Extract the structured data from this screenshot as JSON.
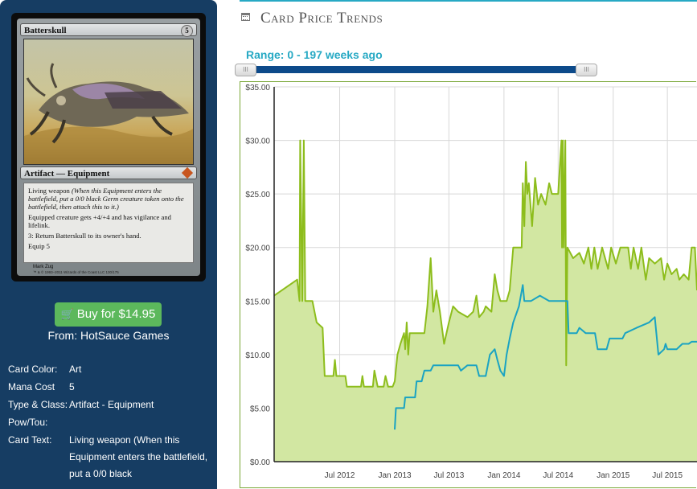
{
  "card": {
    "name": "Batterskull",
    "mana_cost": "5",
    "type_line": "Artifact — Equipment",
    "rules_text": [
      {
        "main": "Living weapon ",
        "reminder": "(When this Equipment enters the battlefield, put a 0/0 black Germ creature token onto the battlefield, then attach this to it.)"
      },
      {
        "main": "Equipped creature gets +4/+4 and has vigilance and lifelink.",
        "reminder": ""
      },
      {
        "main": "3: Return Batterskull to its owner's hand.",
        "reminder": ""
      },
      {
        "main": "Equip 5",
        "reminder": ""
      }
    ],
    "artist": "Mark Zug",
    "copyright": "™ & © 1993–2011 Wizards of the Coast LLC 130/175"
  },
  "buy": {
    "label": "Buy for $14.95",
    "icon": "shopping-cart-icon"
  },
  "seller": "From: HotSauce Games",
  "details": [
    {
      "key": "Card Color:",
      "value": "Art"
    },
    {
      "key": "Mana Cost",
      "value": "5"
    },
    {
      "key": "Type & Class:",
      "value": "Artifact - Equipment"
    },
    {
      "key": "Pow/Tou:",
      "value": ""
    },
    {
      "key": "Card Text:",
      "value": "Living weapon (When this Equipment enters the battlefield, put a 0/0 black"
    }
  ],
  "header": {
    "title": "Card Price Trends",
    "icon": "calendar-icon"
  },
  "range": {
    "label": "Range: 0 - 197 weeks ago",
    "min_weeks": 0,
    "max_weeks": 197
  },
  "colors": {
    "sidebar": "#163d63",
    "accent": "#27a9c4",
    "buy_button": "#5cb85c",
    "series_retail": "#8dbd1c",
    "series_retail_fill": "#d2e7a2",
    "series_buy": "#1aa3c2"
  },
  "chart_data": {
    "type": "line",
    "xlabel": "",
    "ylabel": "",
    "ylim": [
      0,
      35
    ],
    "yticks": [
      "$0.00",
      "$5.00",
      "$10.00",
      "$15.00",
      "$20.00",
      "$25.00",
      "$30.00",
      "$35.00"
    ],
    "xlim": [
      "2011-11-25",
      "2015-10-08"
    ],
    "xticks": [
      {
        "label": "Jul 2012",
        "date": "2012-07-01"
      },
      {
        "label": "Jan 2013",
        "date": "2013-01-01"
      },
      {
        "label": "Jul 2013",
        "date": "2013-07-01"
      },
      {
        "label": "Jan 2014",
        "date": "2014-01-01"
      },
      {
        "label": "Jul 2014",
        "date": "2014-07-01"
      },
      {
        "label": "Jan 2015",
        "date": "2015-01-01"
      },
      {
        "label": "Jul 2015",
        "date": "2015-07-01"
      }
    ],
    "grid": true,
    "series": [
      {
        "points": [
          [
            "2011-11-25",
            15.5
          ],
          [
            "2012-02-10",
            17.0
          ],
          [
            "2012-02-18",
            15.0
          ],
          [
            "2012-02-20",
            30.0
          ],
          [
            "2012-02-27",
            15.0
          ],
          [
            "2012-03-03",
            30.0
          ],
          [
            "2012-03-08",
            15.0
          ],
          [
            "2012-04-01",
            15.0
          ],
          [
            "2012-04-15",
            13.0
          ],
          [
            "2012-05-05",
            12.5
          ],
          [
            "2012-05-12",
            8.0
          ],
          [
            "2012-06-10",
            8.0
          ],
          [
            "2012-06-15",
            9.5
          ],
          [
            "2012-06-20",
            8.0
          ],
          [
            "2012-07-20",
            8.0
          ],
          [
            "2012-07-25",
            7.0
          ],
          [
            "2012-09-10",
            7.0
          ],
          [
            "2012-09-15",
            8.0
          ],
          [
            "2012-09-20",
            7.0
          ],
          [
            "2012-10-20",
            7.0
          ],
          [
            "2012-10-25",
            8.5
          ],
          [
            "2012-11-05",
            7.0
          ],
          [
            "2012-11-25",
            7.0
          ],
          [
            "2012-12-01",
            8.0
          ],
          [
            "2012-12-10",
            7.0
          ],
          [
            "2012-12-25",
            7.0
          ],
          [
            "2013-01-01",
            7.5
          ],
          [
            "2013-01-10",
            10.0
          ],
          [
            "2013-01-20",
            11.0
          ],
          [
            "2013-02-01",
            12.0
          ],
          [
            "2013-02-05",
            10.5
          ],
          [
            "2013-02-10",
            13.0
          ],
          [
            "2013-02-15",
            10.0
          ],
          [
            "2013-02-20",
            12.0
          ],
          [
            "2013-03-10",
            12.0
          ],
          [
            "2013-03-20",
            12.0
          ],
          [
            "2013-04-10",
            12.0
          ],
          [
            "2013-04-20",
            14.5
          ],
          [
            "2013-05-01",
            19.0
          ],
          [
            "2013-05-10",
            14.0
          ],
          [
            "2013-05-20",
            16.0
          ],
          [
            "2013-06-01",
            14.0
          ],
          [
            "2013-06-15",
            11.0
          ],
          [
            "2013-07-01",
            13.0
          ],
          [
            "2013-07-15",
            14.5
          ],
          [
            "2013-08-01",
            14.0
          ],
          [
            "2013-09-01",
            13.5
          ],
          [
            "2013-09-20",
            14.0
          ],
          [
            "2013-10-01",
            15.5
          ],
          [
            "2013-10-10",
            13.5
          ],
          [
            "2013-10-25",
            14.0
          ],
          [
            "2013-11-01",
            14.5
          ],
          [
            "2013-11-20",
            14.0
          ],
          [
            "2013-12-01",
            17.5
          ],
          [
            "2013-12-10",
            16.0
          ],
          [
            "2013-12-20",
            15.0
          ],
          [
            "2014-01-10",
            15.0
          ],
          [
            "2014-01-20",
            16.0
          ],
          [
            "2014-02-01",
            20.0
          ],
          [
            "2014-03-01",
            20.0
          ],
          [
            "2014-03-05",
            26.0
          ],
          [
            "2014-03-10",
            22.0
          ],
          [
            "2014-03-15",
            28.0
          ],
          [
            "2014-03-20",
            25.0
          ],
          [
            "2014-03-25",
            26.0
          ],
          [
            "2014-04-05",
            22.0
          ],
          [
            "2014-04-15",
            26.5
          ],
          [
            "2014-04-25",
            24.0
          ],
          [
            "2014-05-05",
            25.0
          ],
          [
            "2014-05-20",
            24.0
          ],
          [
            "2014-06-01",
            26.0
          ],
          [
            "2014-06-10",
            25.0
          ],
          [
            "2014-07-01",
            25.0
          ],
          [
            "2014-07-12",
            30.0
          ],
          [
            "2014-07-14",
            20.0
          ],
          [
            "2014-07-17",
            30.0
          ],
          [
            "2014-07-20",
            20.0
          ],
          [
            "2014-07-25",
            30.0
          ],
          [
            "2014-07-28",
            9.0
          ],
          [
            "2014-08-01",
            20.0
          ],
          [
            "2014-08-20",
            19.0
          ],
          [
            "2014-09-10",
            19.5
          ],
          [
            "2014-09-25",
            18.5
          ],
          [
            "2014-10-10",
            20.0
          ],
          [
            "2014-10-20",
            18.0
          ],
          [
            "2014-10-30",
            20.0
          ],
          [
            "2014-11-10",
            18.0
          ],
          [
            "2014-11-25",
            20.0
          ],
          [
            "2014-12-15",
            18.0
          ],
          [
            "2014-12-25",
            20.0
          ],
          [
            "2015-01-10",
            18.5
          ],
          [
            "2015-01-25",
            20.0
          ],
          [
            "2015-02-20",
            20.0
          ],
          [
            "2015-03-01",
            18.0
          ],
          [
            "2015-03-10",
            20.0
          ],
          [
            "2015-03-25",
            18.0
          ],
          [
            "2015-04-05",
            20.0
          ],
          [
            "2015-04-20",
            17.0
          ],
          [
            "2015-05-01",
            19.0
          ],
          [
            "2015-05-20",
            18.5
          ],
          [
            "2015-06-10",
            19.0
          ],
          [
            "2015-06-20",
            17.0
          ],
          [
            "2015-07-01",
            18.5
          ],
          [
            "2015-07-15",
            17.5
          ],
          [
            "2015-08-01",
            18.0
          ],
          [
            "2015-08-10",
            17.0
          ],
          [
            "2015-08-25",
            17.5
          ],
          [
            "2015-09-10",
            17.0
          ],
          [
            "2015-09-20",
            20.0
          ],
          [
            "2015-10-01",
            20.0
          ],
          [
            "2015-10-08",
            16.0
          ]
        ]
      },
      {
        "points": [
          [
            "2013-01-01",
            3.0
          ],
          [
            "2013-01-05",
            5.0
          ],
          [
            "2013-02-01",
            5.0
          ],
          [
            "2013-02-05",
            6.0
          ],
          [
            "2013-03-10",
            6.0
          ],
          [
            "2013-03-15",
            7.5
          ],
          [
            "2013-04-01",
            7.5
          ],
          [
            "2013-04-10",
            8.5
          ],
          [
            "2013-05-01",
            8.5
          ],
          [
            "2013-05-10",
            9.0
          ],
          [
            "2013-08-01",
            9.0
          ],
          [
            "2013-08-10",
            8.5
          ],
          [
            "2013-09-01",
            9.0
          ],
          [
            "2013-10-01",
            9.0
          ],
          [
            "2013-10-10",
            8.0
          ],
          [
            "2013-11-01",
            8.0
          ],
          [
            "2013-11-15",
            10.0
          ],
          [
            "2013-12-01",
            10.5
          ],
          [
            "2013-12-10",
            9.5
          ],
          [
            "2013-12-20",
            8.5
          ],
          [
            "2014-01-01",
            8.0
          ],
          [
            "2014-01-10",
            10.0
          ],
          [
            "2014-01-20",
            11.5
          ],
          [
            "2014-02-01",
            13.0
          ],
          [
            "2014-02-20",
            14.5
          ],
          [
            "2014-03-05",
            16.5
          ],
          [
            "2014-03-10",
            15.0
          ],
          [
            "2014-04-01",
            15.0
          ],
          [
            "2014-05-01",
            15.5
          ],
          [
            "2014-06-01",
            15.0
          ],
          [
            "2014-08-01",
            15.0
          ],
          [
            "2014-08-05",
            12.0
          ],
          [
            "2014-09-01",
            12.0
          ],
          [
            "2014-09-10",
            12.5
          ],
          [
            "2014-10-01",
            12.0
          ],
          [
            "2014-11-01",
            12.0
          ],
          [
            "2014-11-10",
            10.5
          ],
          [
            "2014-12-10",
            10.5
          ],
          [
            "2014-12-20",
            11.5
          ],
          [
            "2015-02-01",
            11.5
          ],
          [
            "2015-02-10",
            12.0
          ],
          [
            "2015-03-20",
            12.5
          ],
          [
            "2015-05-01",
            13.0
          ],
          [
            "2015-05-20",
            13.5
          ],
          [
            "2015-06-01",
            10.0
          ],
          [
            "2015-06-20",
            10.5
          ],
          [
            "2015-06-25",
            11.0
          ],
          [
            "2015-07-01",
            10.5
          ],
          [
            "2015-08-01",
            10.5
          ],
          [
            "2015-08-20",
            11.0
          ],
          [
            "2015-09-10",
            11.0
          ],
          [
            "2015-09-20",
            11.2
          ],
          [
            "2015-10-08",
            11.2
          ]
        ]
      }
    ]
  }
}
